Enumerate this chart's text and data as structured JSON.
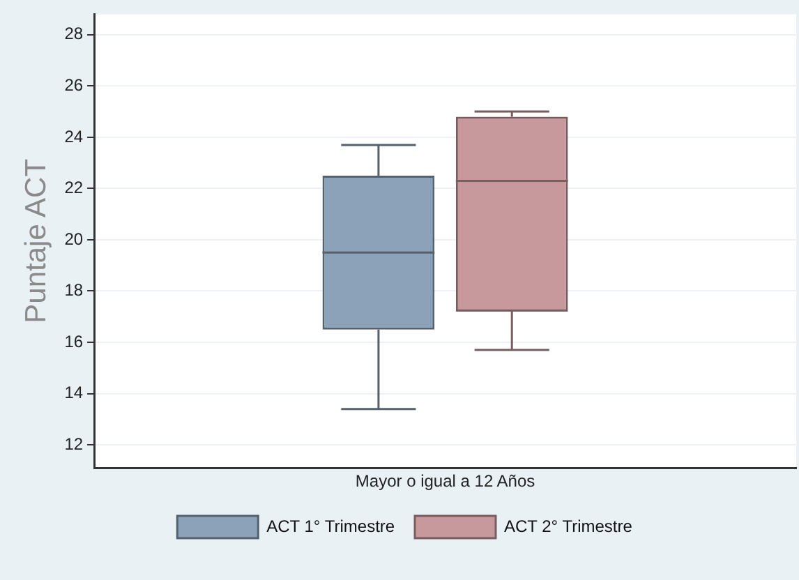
{
  "chart_data": {
    "type": "box",
    "ylabel": "Puntaje ACT",
    "categories": [
      "Mayor o igual a 12 Años"
    ],
    "series": [
      {
        "name": "ACT 1° Trimestre",
        "color": "#8ca2b8",
        "boxes": [
          {
            "low": 13.4,
            "q1": 16.5,
            "median": 19.5,
            "q3": 22.5,
            "high": 23.7
          }
        ]
      },
      {
        "name": "ACT 2° Trimestre",
        "color": "#c8999c",
        "boxes": [
          {
            "low": 15.7,
            "q1": 17.2,
            "median": 22.3,
            "q3": 24.8,
            "high": 25.0
          }
        ]
      }
    ],
    "ylim": [
      11.1,
      28.8
    ],
    "yticks": [
      12,
      14,
      16,
      18,
      20,
      22,
      24,
      26,
      28
    ],
    "grid": "y",
    "legend": "bottom"
  }
}
